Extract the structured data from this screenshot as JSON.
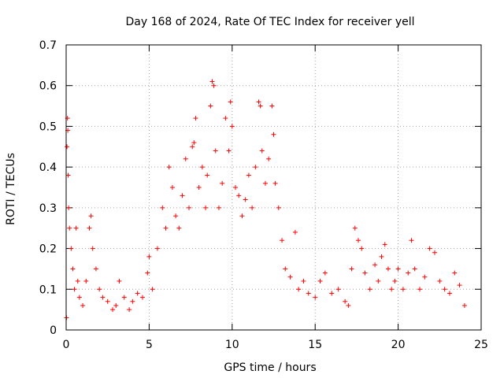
{
  "chart_data": {
    "type": "scatter",
    "title": "Day 168 of 2024, Rate Of TEC Index for receiver yell",
    "xlabel": "GPS time / hours",
    "ylabel": "ROTI / TECUs",
    "xlim": [
      0,
      25
    ],
    "ylim": [
      0,
      0.7
    ],
    "xticks": [
      0,
      5,
      10,
      15,
      20,
      25
    ],
    "xtick_labels": [
      "0",
      "5",
      "10",
      "15",
      "20",
      "25"
    ],
    "yticks": [
      0,
      0.1,
      0.2,
      0.3,
      0.4,
      0.5,
      0.6,
      0.7
    ],
    "ytick_labels": [
      "0",
      "0.1",
      "0.2",
      "0.3",
      "0.4",
      "0.5",
      "0.6",
      "0.7"
    ],
    "grid": true,
    "marker": "+",
    "marker_color": "#ff0000",
    "series": [
      {
        "name": "ROTI",
        "points": [
          [
            0.02,
            0.03
          ],
          [
            0.05,
            0.45
          ],
          [
            0.08,
            0.52
          ],
          [
            0.1,
            0.49
          ],
          [
            0.12,
            0.38
          ],
          [
            0.15,
            0.3
          ],
          [
            0.2,
            0.25
          ],
          [
            0.3,
            0.2
          ],
          [
            0.4,
            0.15
          ],
          [
            0.5,
            0.1
          ],
          [
            0.6,
            0.25
          ],
          [
            0.7,
            0.12
          ],
          [
            0.8,
            0.08
          ],
          [
            1.0,
            0.06
          ],
          [
            1.2,
            0.12
          ],
          [
            1.4,
            0.25
          ],
          [
            1.5,
            0.28
          ],
          [
            1.6,
            0.2
          ],
          [
            1.8,
            0.15
          ],
          [
            2.0,
            0.1
          ],
          [
            2.2,
            0.08
          ],
          [
            2.5,
            0.07
          ],
          [
            2.8,
            0.05
          ],
          [
            3.0,
            0.06
          ],
          [
            3.2,
            0.12
          ],
          [
            3.5,
            0.08
          ],
          [
            3.8,
            0.05
          ],
          [
            4.0,
            0.07
          ],
          [
            4.3,
            0.09
          ],
          [
            4.6,
            0.08
          ],
          [
            4.9,
            0.14
          ],
          [
            5.0,
            0.18
          ],
          [
            5.2,
            0.1
          ],
          [
            5.5,
            0.2
          ],
          [
            5.8,
            0.3
          ],
          [
            6.0,
            0.25
          ],
          [
            6.2,
            0.4
          ],
          [
            6.4,
            0.35
          ],
          [
            6.6,
            0.28
          ],
          [
            6.8,
            0.25
          ],
          [
            7.0,
            0.33
          ],
          [
            7.2,
            0.42
          ],
          [
            7.4,
            0.3
          ],
          [
            7.6,
            0.45
          ],
          [
            7.7,
            0.46
          ],
          [
            7.8,
            0.52
          ],
          [
            8.0,
            0.35
          ],
          [
            8.2,
            0.4
          ],
          [
            8.4,
            0.3
          ],
          [
            8.5,
            0.38
          ],
          [
            8.7,
            0.55
          ],
          [
            8.8,
            0.61
          ],
          [
            8.9,
            0.6
          ],
          [
            9.0,
            0.44
          ],
          [
            9.2,
            0.3
          ],
          [
            9.4,
            0.36
          ],
          [
            9.6,
            0.52
          ],
          [
            9.8,
            0.44
          ],
          [
            9.9,
            0.56
          ],
          [
            10.0,
            0.5
          ],
          [
            10.2,
            0.35
          ],
          [
            10.4,
            0.33
          ],
          [
            10.6,
            0.28
          ],
          [
            10.8,
            0.32
          ],
          [
            11.0,
            0.38
          ],
          [
            11.2,
            0.3
          ],
          [
            11.4,
            0.4
          ],
          [
            11.6,
            0.56
          ],
          [
            11.7,
            0.55
          ],
          [
            11.8,
            0.44
          ],
          [
            12.0,
            0.36
          ],
          [
            12.2,
            0.42
          ],
          [
            12.4,
            0.55
          ],
          [
            12.5,
            0.48
          ],
          [
            12.6,
            0.36
          ],
          [
            12.8,
            0.3
          ],
          [
            13.0,
            0.22
          ],
          [
            13.2,
            0.15
          ],
          [
            13.5,
            0.13
          ],
          [
            13.8,
            0.24
          ],
          [
            14.0,
            0.1
          ],
          [
            14.3,
            0.12
          ],
          [
            14.6,
            0.09
          ],
          [
            15.0,
            0.08
          ],
          [
            15.3,
            0.12
          ],
          [
            15.6,
            0.14
          ],
          [
            16.0,
            0.09
          ],
          [
            16.4,
            0.1
          ],
          [
            16.8,
            0.07
          ],
          [
            17.0,
            0.06
          ],
          [
            17.2,
            0.15
          ],
          [
            17.4,
            0.25
          ],
          [
            17.6,
            0.22
          ],
          [
            17.8,
            0.2
          ],
          [
            18.0,
            0.14
          ],
          [
            18.3,
            0.1
          ],
          [
            18.6,
            0.16
          ],
          [
            18.8,
            0.12
          ],
          [
            19.0,
            0.18
          ],
          [
            19.2,
            0.21
          ],
          [
            19.4,
            0.15
          ],
          [
            19.6,
            0.1
          ],
          [
            19.8,
            0.12
          ],
          [
            20.0,
            0.15
          ],
          [
            20.3,
            0.1
          ],
          [
            20.6,
            0.14
          ],
          [
            20.8,
            0.22
          ],
          [
            21.0,
            0.15
          ],
          [
            21.3,
            0.1
          ],
          [
            21.6,
            0.13
          ],
          [
            21.9,
            0.2
          ],
          [
            22.2,
            0.19
          ],
          [
            22.5,
            0.12
          ],
          [
            22.8,
            0.1
          ],
          [
            23.1,
            0.09
          ],
          [
            23.4,
            0.14
          ],
          [
            23.7,
            0.11
          ],
          [
            24.0,
            0.06
          ]
        ]
      }
    ]
  }
}
